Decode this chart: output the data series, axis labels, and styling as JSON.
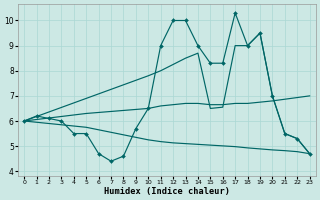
{
  "bg_color": "#cce8e4",
  "line_color": "#006666",
  "grid_color": "#aad8d4",
  "xlabel": "Humidex (Indice chaleur)",
  "ylim": [
    3.8,
    10.65
  ],
  "xlim": [
    -0.5,
    23.5
  ],
  "yticks": [
    4,
    5,
    6,
    7,
    8,
    9,
    10
  ],
  "xtick_labels": [
    "0",
    "1",
    "2",
    "3",
    "4",
    "5",
    "6",
    "7",
    "8",
    "9",
    "10",
    "11",
    "12",
    "13",
    "14",
    "15",
    "16",
    "17",
    "18",
    "19",
    "20",
    "21",
    "22",
    "23"
  ],
  "line_jagged": {
    "x": [
      0,
      1,
      2,
      3,
      4,
      5,
      6,
      7,
      8,
      9,
      10,
      11,
      12,
      13,
      14,
      15,
      16,
      17,
      18,
      19,
      20,
      21,
      22,
      23
    ],
    "y": [
      6.0,
      6.2,
      6.1,
      6.0,
      5.5,
      5.5,
      4.7,
      4.4,
      4.6,
      5.7,
      6.5,
      9.0,
      10.0,
      10.0,
      9.0,
      8.3,
      8.3,
      10.3,
      9.0,
      9.5,
      7.0,
      5.5,
      5.3,
      4.7
    ]
  },
  "line_diagonal": {
    "x": [
      0,
      10,
      11,
      12,
      13,
      14,
      15,
      16,
      17,
      18,
      19,
      20,
      21,
      22,
      23
    ],
    "y": [
      6.0,
      7.8,
      8.0,
      8.25,
      8.5,
      8.7,
      6.5,
      6.55,
      9.0,
      9.0,
      9.5,
      7.0,
      5.5,
      5.3,
      4.7
    ]
  },
  "line_smooth_rise": {
    "x": [
      0,
      5,
      10,
      11,
      12,
      13,
      14,
      15,
      16,
      17,
      18,
      19,
      20,
      23
    ],
    "y": [
      6.0,
      6.3,
      6.5,
      6.6,
      6.65,
      6.7,
      6.7,
      6.65,
      6.65,
      6.7,
      6.7,
      6.75,
      6.8,
      7.0
    ]
  },
  "line_flat_decline": {
    "x": [
      0,
      1,
      2,
      3,
      4,
      5,
      6,
      7,
      8,
      9,
      10,
      11,
      12,
      13,
      14,
      15,
      16,
      17,
      18,
      19,
      20,
      21,
      22,
      23
    ],
    "y": [
      6.0,
      5.95,
      5.9,
      5.85,
      5.8,
      5.75,
      5.65,
      5.55,
      5.45,
      5.35,
      5.25,
      5.18,
      5.13,
      5.1,
      5.07,
      5.04,
      5.01,
      4.98,
      4.93,
      4.89,
      4.85,
      4.82,
      4.78,
      4.7
    ]
  }
}
